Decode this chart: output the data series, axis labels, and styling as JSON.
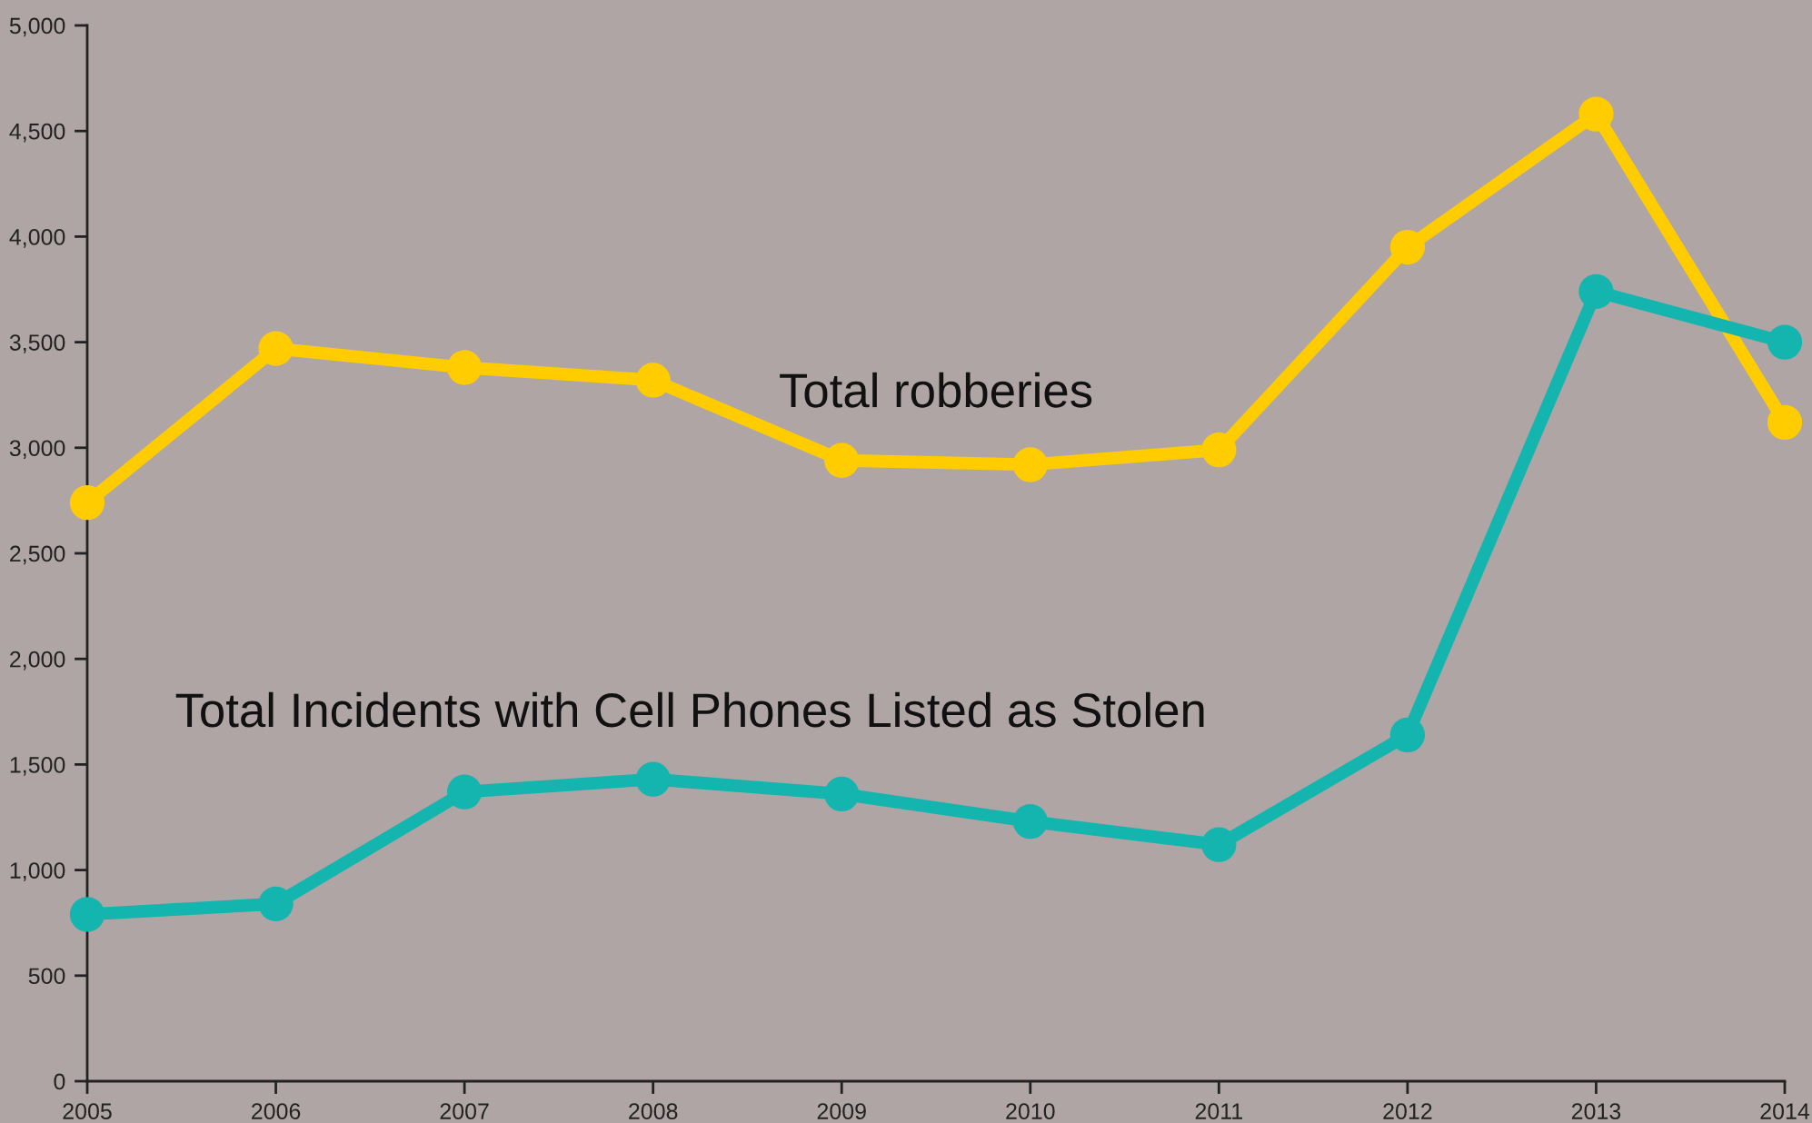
{
  "chart_data": {
    "type": "line",
    "x": [
      2005,
      2006,
      2007,
      2008,
      2009,
      2010,
      2011,
      2012,
      2013,
      2014
    ],
    "series": [
      {
        "name": "Total robberies",
        "color": "#ffcc00",
        "values": [
          2740,
          3470,
          3380,
          3320,
          2940,
          2920,
          2990,
          3950,
          4580,
          3120
        ]
      },
      {
        "name": "Total Incidents with Cell Phones Listed as Stolen",
        "color": "#14b5ae",
        "values": [
          790,
          840,
          1370,
          1430,
          1360,
          1230,
          1120,
          1640,
          3740,
          3500
        ]
      }
    ],
    "xlim": [
      2005,
      2014
    ],
    "xticks": [
      2005,
      2006,
      2007,
      2008,
      2009,
      2010,
      2011,
      2012,
      2013,
      2014
    ],
    "ylim": [
      0,
      5000
    ],
    "yticks": [
      0,
      {
        "value": 500,
        "label": "500"
      },
      {
        "value": 1000,
        "label": "1,000"
      },
      {
        "value": 1500,
        "label": "1,500"
      },
      {
        "value": 2000,
        "label": "2,000"
      },
      {
        "value": 2500,
        "label": "2,500"
      },
      {
        "value": 3000,
        "label": "3,000"
      },
      {
        "value": 3500,
        "label": "3,500"
      },
      {
        "value": 4000,
        "label": "4,000"
      },
      {
        "value": 4500,
        "label": "4,500"
      },
      {
        "value": 5000,
        "label": "5,000"
      }
    ],
    "marker": "circle",
    "line_style": "solid",
    "grid": false,
    "legend": false
  }
}
